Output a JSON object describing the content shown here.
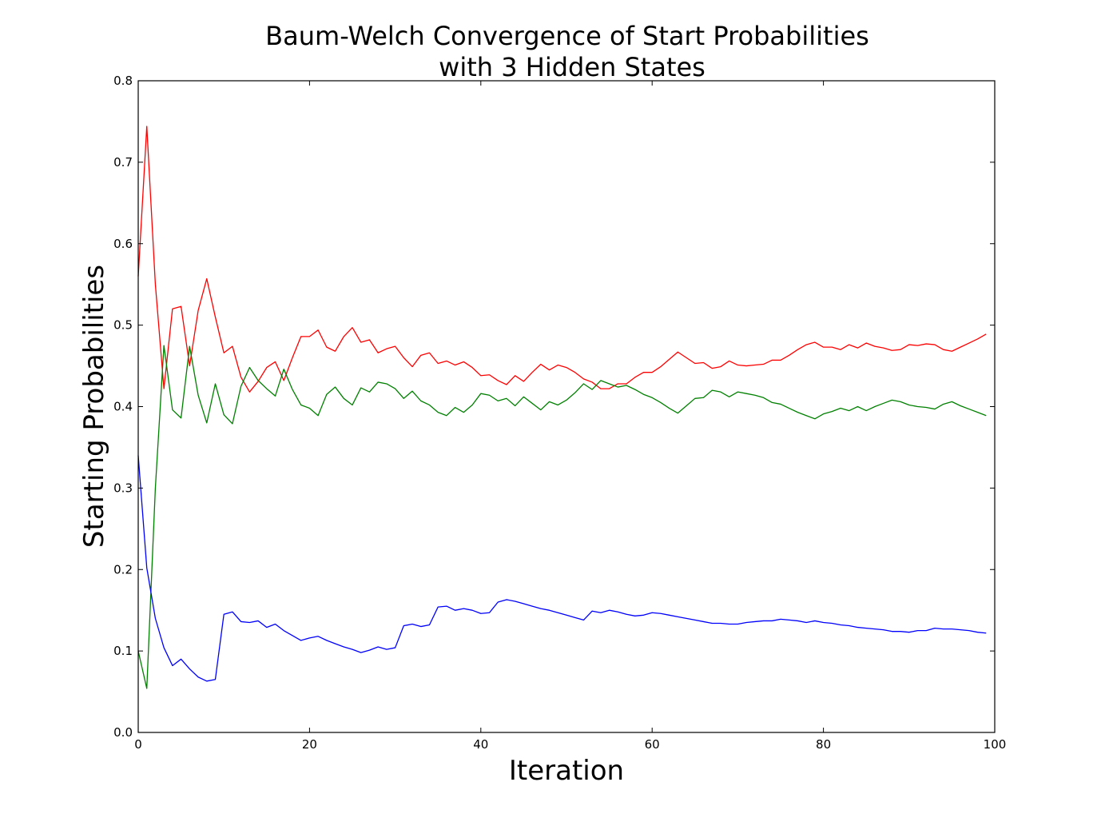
{
  "chart_data": {
    "type": "line",
    "title": "Baum-Welch Convergence of Start Probabilities",
    "subtitle": "with 3 Hidden States",
    "xlabel": "Iteration",
    "ylabel": "Starting Probabilities",
    "xlim": [
      0,
      100
    ],
    "ylim": [
      0.0,
      0.8
    ],
    "xticks": [
      "0",
      "20",
      "40",
      "60",
      "80",
      "100"
    ],
    "yticks": [
      "0.0",
      "0.1",
      "0.2",
      "0.3",
      "0.4",
      "0.5",
      "0.6",
      "0.7",
      "0.8"
    ],
    "grid": false,
    "x_start": 0,
    "x_step": 1,
    "series": [
      {
        "color": "#ff0000",
        "values": [
          0.56,
          0.744,
          0.55,
          0.422,
          0.52,
          0.523,
          0.45,
          0.518,
          0.557,
          0.51,
          0.466,
          0.474,
          0.436,
          0.418,
          0.431,
          0.448,
          0.455,
          0.432,
          0.46,
          0.486,
          0.486,
          0.494,
          0.473,
          0.468,
          0.486,
          0.497,
          0.479,
          0.482,
          0.466,
          0.471,
          0.474,
          0.46,
          0.449,
          0.463,
          0.466,
          0.453,
          0.456,
          0.451,
          0.455,
          0.448,
          0.438,
          0.439,
          0.432,
          0.427,
          0.438,
          0.431,
          0.442,
          0.452,
          0.445,
          0.451,
          0.448,
          0.442,
          0.434,
          0.43,
          0.422,
          0.422,
          0.428,
          0.428,
          0.436,
          0.442,
          0.442,
          0.449,
          0.458,
          0.467,
          0.46,
          0.453,
          0.454,
          0.447,
          0.449,
          0.456,
          0.451,
          0.45,
          0.451,
          0.452,
          0.457,
          0.457,
          0.463,
          0.47,
          0.476,
          0.479,
          0.473,
          0.473,
          0.47,
          0.476,
          0.472,
          0.478,
          0.474,
          0.472,
          0.469,
          0.47,
          0.476,
          0.475,
          0.477,
          0.476,
          0.47,
          0.468,
          0.473,
          0.478,
          0.483,
          0.489
        ]
      },
      {
        "color": "#008000",
        "values": [
          0.1,
          0.054,
          0.3,
          0.475,
          0.396,
          0.386,
          0.474,
          0.414,
          0.38,
          0.428,
          0.39,
          0.379,
          0.425,
          0.448,
          0.432,
          0.422,
          0.413,
          0.446,
          0.421,
          0.402,
          0.398,
          0.389,
          0.415,
          0.424,
          0.41,
          0.402,
          0.423,
          0.418,
          0.43,
          0.428,
          0.422,
          0.41,
          0.419,
          0.407,
          0.402,
          0.393,
          0.389,
          0.399,
          0.393,
          0.402,
          0.416,
          0.414,
          0.407,
          0.41,
          0.401,
          0.412,
          0.404,
          0.396,
          0.406,
          0.402,
          0.408,
          0.417,
          0.428,
          0.421,
          0.432,
          0.428,
          0.424,
          0.426,
          0.421,
          0.415,
          0.411,
          0.405,
          0.398,
          0.392,
          0.401,
          0.41,
          0.411,
          0.42,
          0.418,
          0.412,
          0.418,
          0.416,
          0.414,
          0.411,
          0.405,
          0.403,
          0.398,
          0.393,
          0.389,
          0.385,
          0.391,
          0.394,
          0.398,
          0.395,
          0.4,
          0.395,
          0.4,
          0.404,
          0.408,
          0.406,
          0.402,
          0.4,
          0.399,
          0.397,
          0.403,
          0.406,
          0.401,
          0.397,
          0.393,
          0.389
        ]
      },
      {
        "color": "#0000ff",
        "values": [
          0.34,
          0.202,
          0.14,
          0.104,
          0.082,
          0.09,
          0.078,
          0.068,
          0.063,
          0.065,
          0.145,
          0.148,
          0.136,
          0.135,
          0.137,
          0.129,
          0.133,
          0.125,
          0.119,
          0.113,
          0.116,
          0.118,
          0.113,
          0.109,
          0.105,
          0.102,
          0.098,
          0.101,
          0.105,
          0.102,
          0.104,
          0.131,
          0.133,
          0.13,
          0.132,
          0.154,
          0.155,
          0.15,
          0.152,
          0.15,
          0.146,
          0.147,
          0.16,
          0.163,
          0.161,
          0.158,
          0.155,
          0.152,
          0.15,
          0.147,
          0.144,
          0.141,
          0.138,
          0.149,
          0.147,
          0.15,
          0.148,
          0.145,
          0.143,
          0.144,
          0.147,
          0.146,
          0.144,
          0.142,
          0.14,
          0.138,
          0.136,
          0.134,
          0.134,
          0.133,
          0.133,
          0.135,
          0.136,
          0.137,
          0.137,
          0.139,
          0.138,
          0.137,
          0.135,
          0.137,
          0.135,
          0.134,
          0.132,
          0.131,
          0.129,
          0.128,
          0.127,
          0.126,
          0.124,
          0.124,
          0.123,
          0.125,
          0.125,
          0.128,
          0.127,
          0.127,
          0.126,
          0.125,
          0.123,
          0.122
        ]
      }
    ]
  }
}
